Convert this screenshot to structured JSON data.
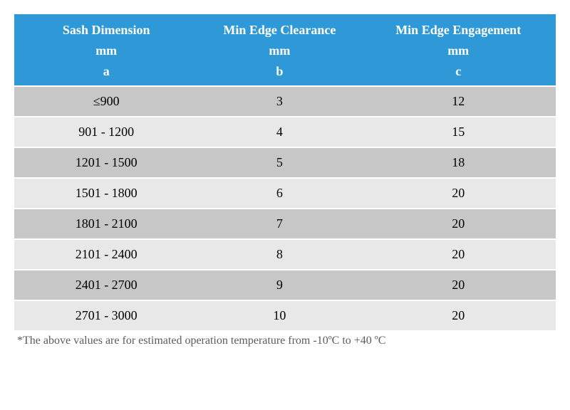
{
  "colors": {
    "header_bg": "#2e99d6",
    "header_text": "#ffffff",
    "row_odd_bg": "#c7c7c7",
    "row_even_bg": "#e8e8e8",
    "cell_text": "#000000",
    "footnote_text": "#5b5b5b",
    "row_divider": "#ffffff",
    "page_bg": "#ffffff"
  },
  "typography": {
    "font_family": "Georgia, 'Times New Roman', serif",
    "header_fontsize_pt": 14,
    "header_fontweight": "bold",
    "cell_fontsize_pt": 14,
    "footnote_fontsize_pt": 12
  },
  "table": {
    "type": "table",
    "column_widths_pct": [
      34,
      30,
      36
    ],
    "columns": [
      {
        "title": "Sash Dimension",
        "unit": "mm",
        "letter": "a"
      },
      {
        "title": "Min Edge Clearance",
        "unit": "mm",
        "letter": "b"
      },
      {
        "title": "Min Edge Engagement",
        "unit": "mm",
        "letter": "c"
      }
    ],
    "rows": [
      {
        "a": "≤900",
        "b": "3",
        "c": "12"
      },
      {
        "a": "901 - 1200",
        "b": "4",
        "c": "15"
      },
      {
        "a": "1201 - 1500",
        "b": "5",
        "c": "18"
      },
      {
        "a": "1501 - 1800",
        "b": "6",
        "c": "20"
      },
      {
        "a": "1801 - 2100",
        "b": "7",
        "c": "20"
      },
      {
        "a": "2101 - 2400",
        "b": "8",
        "c": "20"
      },
      {
        "a": "2401 - 2700",
        "b": "9",
        "c": "20"
      },
      {
        "a": "2701 - 3000",
        "b": "10",
        "c": "20"
      }
    ]
  },
  "footnote": "*The above values are for estimated operation temperature from -10ºC to +40 ºC"
}
